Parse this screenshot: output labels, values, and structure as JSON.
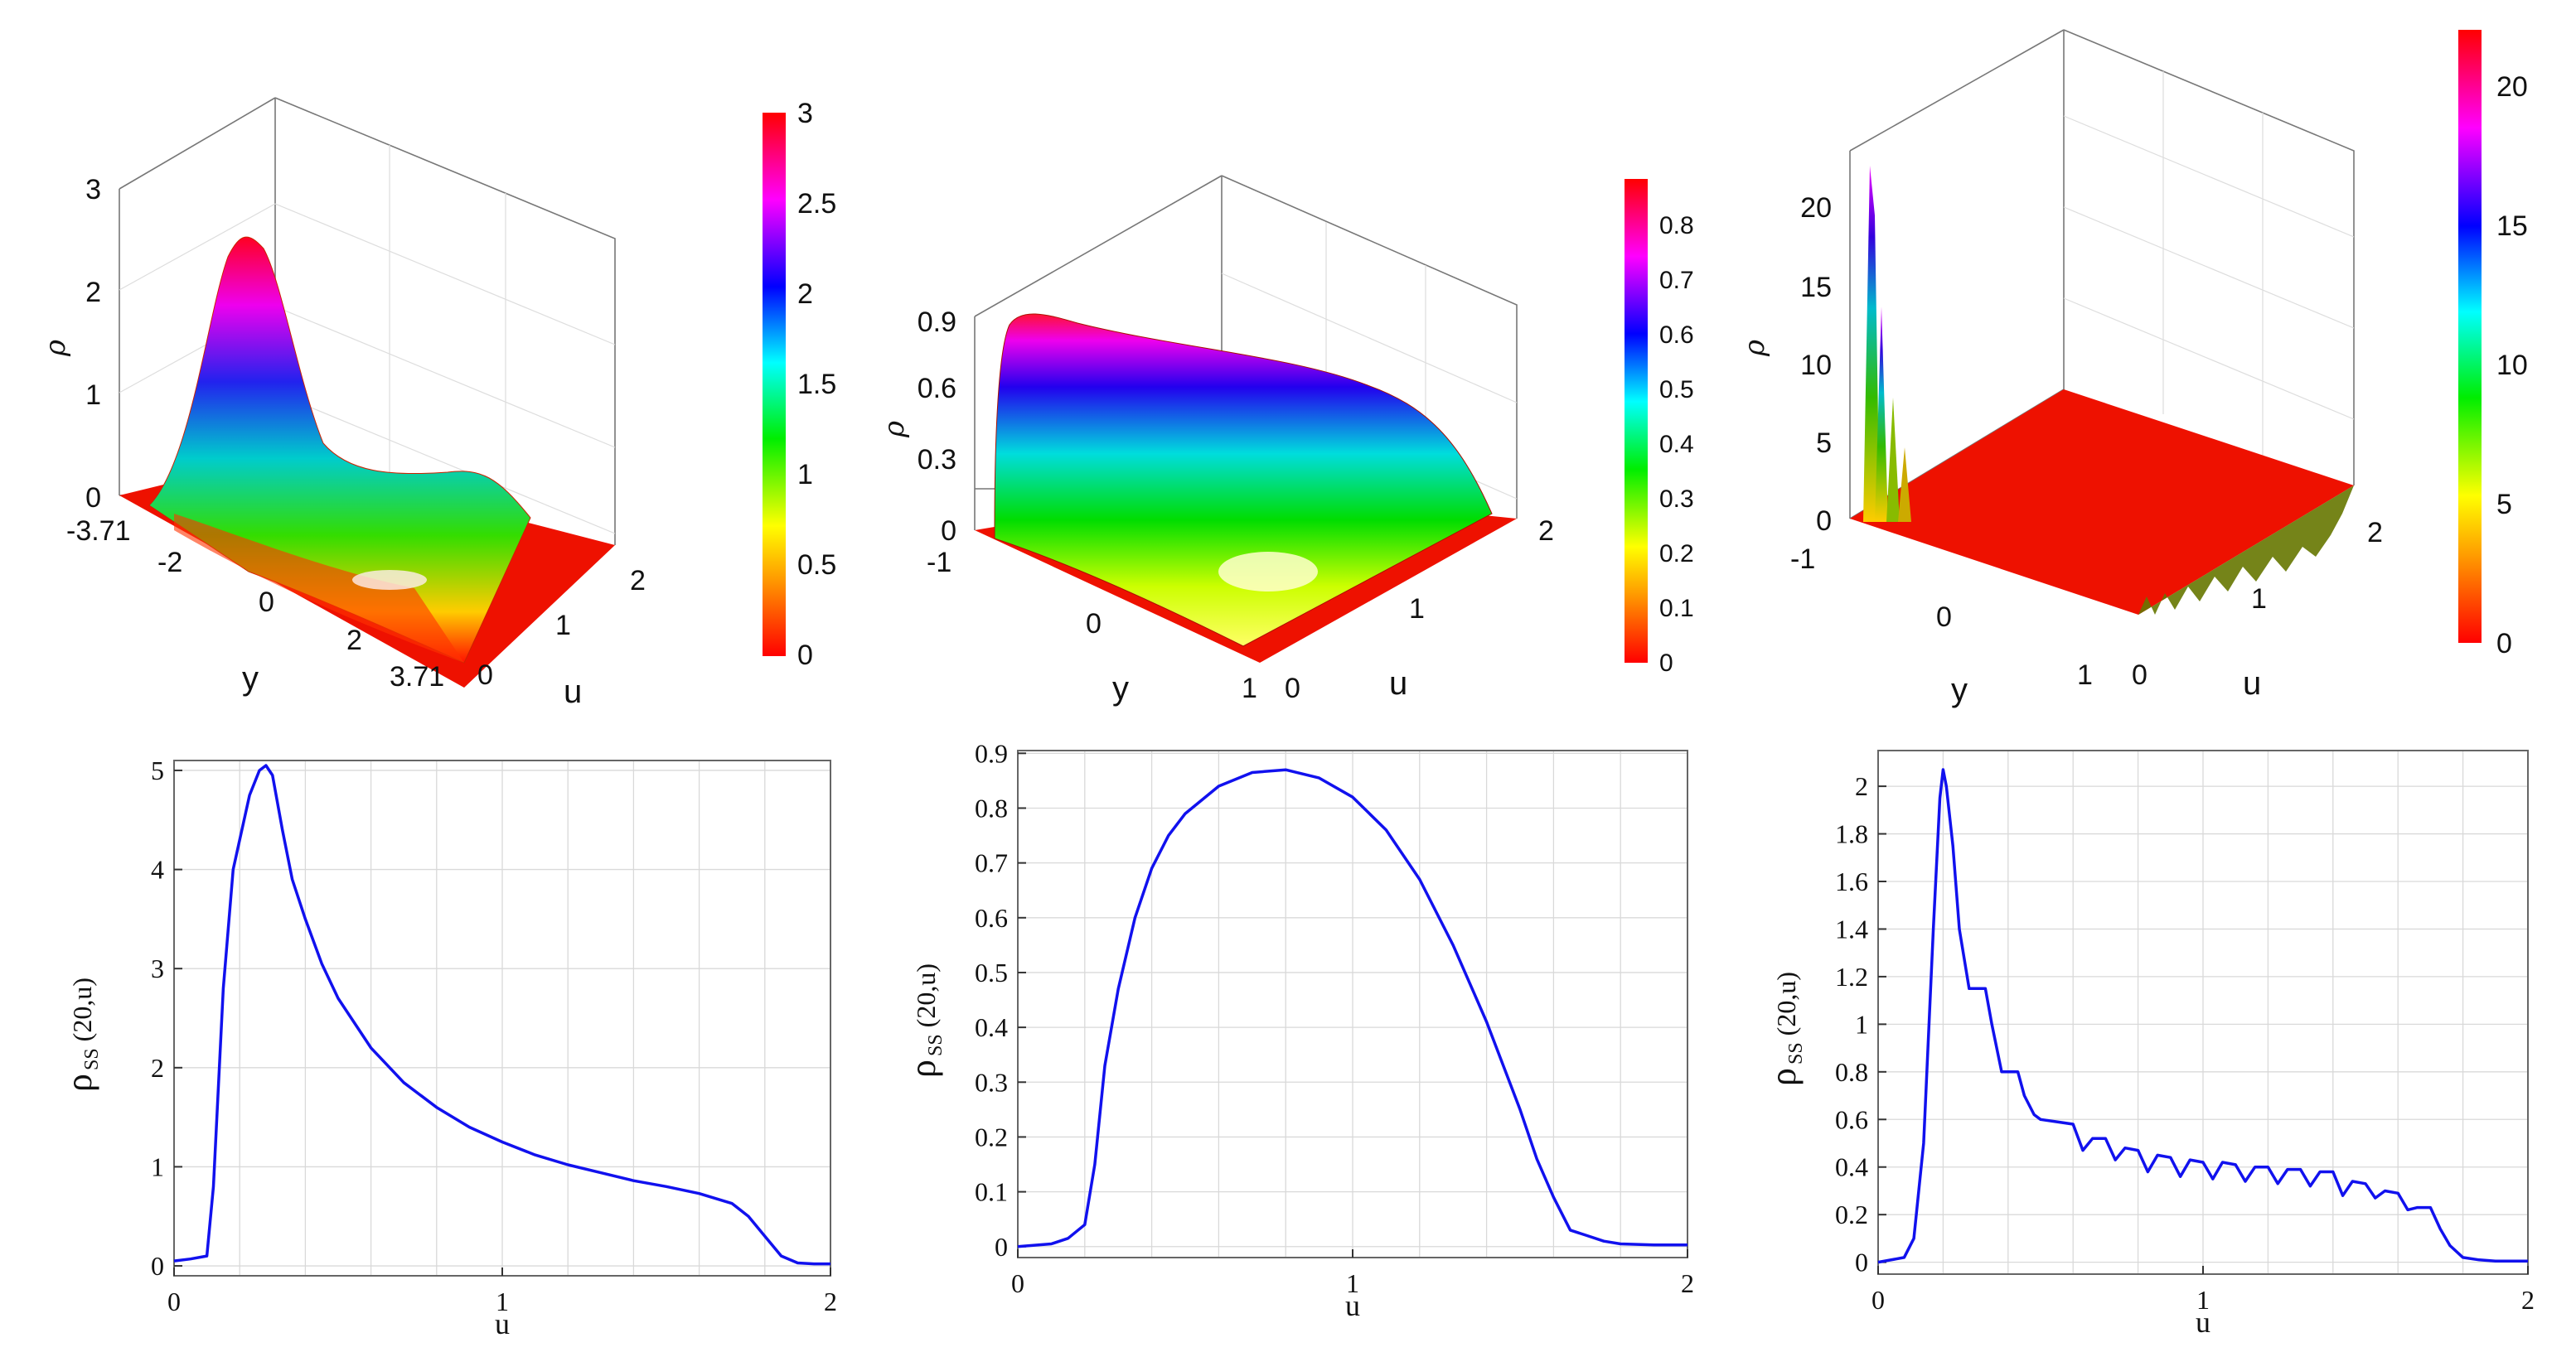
{
  "colors": {
    "curve": "#1111ee",
    "grid": "#d9d9d9",
    "box": "#666666"
  },
  "panels_3d": [
    {
      "z_ticks": [
        "0",
        "1",
        "2",
        "3"
      ],
      "y_ticks": [
        "-3.71",
        "-2",
        "0",
        "2",
        "3.71"
      ],
      "u_ticks": [
        "0",
        "1",
        "2"
      ],
      "cbar_ticks": [
        "0",
        "0.5",
        "1",
        "1.5",
        "2",
        "2.5",
        "3"
      ],
      "xlabel": "y",
      "ulabel": "u",
      "zlabel": "ρ"
    },
    {
      "z_ticks": [
        "0",
        "0.3",
        "0.6",
        "0.9"
      ],
      "y_ticks": [
        "-1",
        "0",
        "1"
      ],
      "u_ticks": [
        "0",
        "1",
        "2"
      ],
      "cbar_ticks": [
        "0",
        "0.1",
        "0.2",
        "0.3",
        "0.4",
        "0.5",
        "0.6",
        "0.7",
        "0.8"
      ],
      "xlabel": "y",
      "ulabel": "u",
      "zlabel": "ρ"
    },
    {
      "z_ticks": [
        "0",
        "5",
        "10",
        "15",
        "20"
      ],
      "y_ticks": [
        "-1",
        "0",
        "1"
      ],
      "u_ticks": [
        "0",
        "1",
        "2"
      ],
      "cbar_ticks": [
        "0",
        "5",
        "10",
        "15",
        "20"
      ],
      "xlabel": "y",
      "ulabel": "u",
      "zlabel": "ρ"
    }
  ],
  "chart_data": [
    {
      "type": "line",
      "xlabel": "u",
      "ylabel_main": "ρ",
      "ylabel_sub": "SS",
      "ylabel_rest": "(20,u)",
      "xlim": [
        0,
        2
      ],
      "ylim": [
        -0.1,
        5.1
      ],
      "xticks": [
        "0",
        "1",
        "2"
      ],
      "yticks": [
        "0",
        "1",
        "2",
        "3",
        "4",
        "5"
      ],
      "x": [
        0,
        0.05,
        0.1,
        0.12,
        0.15,
        0.18,
        0.2,
        0.23,
        0.26,
        0.28,
        0.3,
        0.33,
        0.36,
        0.4,
        0.45,
        0.5,
        0.6,
        0.7,
        0.8,
        0.9,
        1.0,
        1.1,
        1.2,
        1.3,
        1.4,
        1.5,
        1.6,
        1.7,
        1.75,
        1.8,
        1.85,
        1.9,
        1.95,
        2.0
      ],
      "y": [
        0.05,
        0.07,
        0.1,
        0.8,
        2.8,
        4.0,
        4.3,
        4.75,
        5.0,
        5.05,
        4.95,
        4.4,
        3.9,
        3.5,
        3.05,
        2.7,
        2.2,
        1.85,
        1.6,
        1.4,
        1.25,
        1.12,
        1.02,
        0.94,
        0.86,
        0.8,
        0.73,
        0.63,
        0.5,
        0.3,
        0.1,
        0.03,
        0.02,
        0.02
      ]
    },
    {
      "type": "line",
      "xlabel": "u",
      "ylabel_main": "ρ",
      "ylabel_sub": "SS",
      "ylabel_rest": "(20,u)",
      "xlim": [
        0,
        2
      ],
      "ylim": [
        -0.02,
        0.905
      ],
      "xticks": [
        "0",
        "1",
        "2"
      ],
      "yticks": [
        "0",
        "0.1",
        "0.2",
        "0.3",
        "0.4",
        "0.5",
        "0.6",
        "0.7",
        "0.8",
        "0.9"
      ],
      "x": [
        0,
        0.1,
        0.15,
        0.2,
        0.23,
        0.26,
        0.3,
        0.35,
        0.4,
        0.45,
        0.5,
        0.6,
        0.7,
        0.8,
        0.9,
        1.0,
        1.1,
        1.2,
        1.3,
        1.4,
        1.5,
        1.55,
        1.6,
        1.65,
        1.7,
        1.75,
        1.8,
        1.9,
        2.0
      ],
      "y": [
        0.0,
        0.005,
        0.015,
        0.04,
        0.15,
        0.33,
        0.47,
        0.6,
        0.69,
        0.75,
        0.79,
        0.84,
        0.865,
        0.87,
        0.855,
        0.82,
        0.76,
        0.67,
        0.55,
        0.41,
        0.25,
        0.16,
        0.09,
        0.03,
        0.02,
        0.01,
        0.005,
        0.003,
        0.003
      ]
    },
    {
      "type": "line",
      "xlabel": "u",
      "ylabel_main": "ρ",
      "ylabel_sub": "SS",
      "ylabel_rest": "(20,u)",
      "xlim": [
        0,
        2
      ],
      "ylim": [
        -0.05,
        2.15
      ],
      "xticks": [
        "0",
        "1",
        "2"
      ],
      "yticks": [
        "0",
        "0.2",
        "0.4",
        "0.6",
        "0.8",
        "1",
        "1.2",
        "1.4",
        "1.6",
        "1.8",
        "2"
      ],
      "x": [
        0,
        0.08,
        0.11,
        0.14,
        0.17,
        0.19,
        0.2,
        0.21,
        0.23,
        0.25,
        0.28,
        0.3,
        0.33,
        0.35,
        0.38,
        0.4,
        0.43,
        0.45,
        0.48,
        0.5,
        0.55,
        0.6,
        0.63,
        0.66,
        0.7,
        0.73,
        0.76,
        0.8,
        0.83,
        0.86,
        0.9,
        0.93,
        0.96,
        1.0,
        1.03,
        1.06,
        1.1,
        1.13,
        1.16,
        1.2,
        1.23,
        1.26,
        1.3,
        1.33,
        1.36,
        1.4,
        1.43,
        1.46,
        1.5,
        1.53,
        1.56,
        1.6,
        1.63,
        1.66,
        1.7,
        1.73,
        1.76,
        1.8,
        1.85,
        1.9,
        1.95,
        2.0
      ],
      "y": [
        0.0,
        0.02,
        0.1,
        0.5,
        1.4,
        1.95,
        2.07,
        2.0,
        1.75,
        1.4,
        1.15,
        1.15,
        1.15,
        1.0,
        0.8,
        0.8,
        0.8,
        0.7,
        0.62,
        0.6,
        0.59,
        0.58,
        0.47,
        0.52,
        0.52,
        0.43,
        0.48,
        0.47,
        0.38,
        0.45,
        0.44,
        0.36,
        0.43,
        0.42,
        0.35,
        0.42,
        0.41,
        0.34,
        0.4,
        0.4,
        0.33,
        0.39,
        0.39,
        0.32,
        0.38,
        0.38,
        0.28,
        0.34,
        0.33,
        0.27,
        0.3,
        0.29,
        0.22,
        0.23,
        0.23,
        0.14,
        0.07,
        0.02,
        0.01,
        0.005,
        0.005,
        0.005
      ]
    }
  ]
}
